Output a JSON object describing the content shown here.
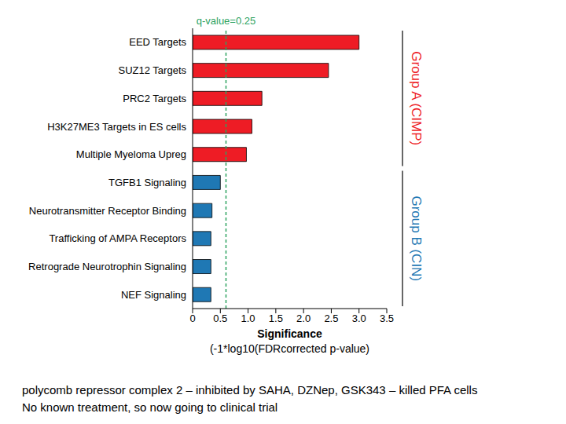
{
  "chart_data": {
    "type": "bar",
    "orientation": "horizontal",
    "categories": [
      "EED Targets",
      "SUZ12 Targets",
      "PRC2 Targets",
      "H3K27ME3 Targets in ES cells",
      "Multiple Myeloma Upreg",
      "TGFB1 Signaling",
      "Neurotransmitter Receptor Binding",
      "Trafficking of AMPA Receptors",
      "Retrograde Neurotrophin Signaling",
      "NEF Signaling"
    ],
    "values": [
      3.0,
      2.45,
      1.25,
      1.07,
      0.97,
      0.5,
      0.35,
      0.33,
      0.33,
      0.33
    ],
    "colors": [
      "#ee1c25",
      "#ee1c25",
      "#ee1c25",
      "#ee1c25",
      "#ee1c25",
      "#1f78b4",
      "#1f78b4",
      "#1f78b4",
      "#1f78b4",
      "#1f78b4"
    ],
    "xlim": [
      0,
      3.5
    ],
    "xticks": [
      0,
      0.5,
      {
        "value": 1,
        "label": "1.0"
      },
      1.5,
      {
        "value": 2,
        "label": "2.0"
      },
      2.5,
      {
        "value": 3,
        "label": "3.0"
      },
      3.5
    ],
    "xlabel": "Significance",
    "xlabel_note": "(-1*log10(FDRcorrected p-value)",
    "grid": false,
    "reference_lines": [
      {
        "x": 0.602,
        "label": "q-value=0.25",
        "color": "#2ca25f",
        "line_style": "dashed"
      }
    ],
    "groups": [
      {
        "label": "Group A (CIMP)",
        "color": "#ee1c25",
        "members": [
          "EED Targets",
          "SUZ12 Targets",
          "PRC2 Targets",
          "H3K27ME3 Targets in ES cells",
          "Multiple Myeloma Upreg"
        ]
      },
      {
        "label": "Group B (CIN)",
        "color": "#1f78b4",
        "members": [
          "TGFB1 Signaling",
          "Neurotransmitter Receptor Binding",
          "Trafficking of AMPA Receptors",
          "Retrograde Neurotrophin Signaling",
          "NEF Signaling"
        ]
      }
    ],
    "notes": [
      "polycomb repressor complex 2 – inhibited by SAHA, DZNep, GSK343 – killed PFA cells",
      "No known treatment, so now going to clinical trial"
    ]
  }
}
